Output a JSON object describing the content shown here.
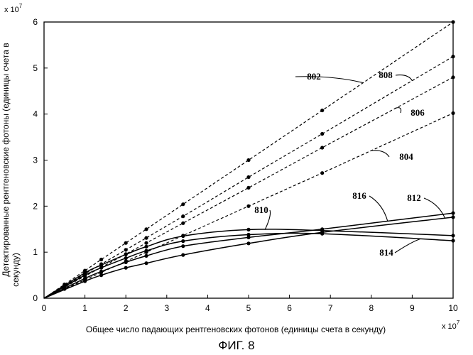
{
  "chart_data": {
    "type": "line",
    "caption": "ФИГ. 8",
    "xlabel": "Общее число падающих рентгеновских фотонов (единицы счета в секунду)",
    "ylabel_line1": "Детектированные рентгеновские фотоны (единицы счета в",
    "ylabel_line2": "секунду)",
    "x_multiplier": {
      "base": "x 10",
      "exp": "7"
    },
    "y_multiplier": {
      "base": "x 10",
      "exp": "7"
    },
    "xlim": [
      0,
      10
    ],
    "ylim": [
      0,
      6
    ],
    "x_ticks": [
      "0",
      "1",
      "2",
      "3",
      "4",
      "5",
      "6",
      "7",
      "8",
      "9",
      "10"
    ],
    "y_ticks": [
      "0",
      "1",
      "2",
      "3",
      "4",
      "5",
      "6"
    ],
    "series": [
      {
        "name": "802",
        "style": "dashed",
        "x": [
          0,
          0.5,
          1,
          1.4,
          2,
          2.5,
          3.4,
          5,
          6.8,
          10
        ],
        "y": [
          0,
          0.3,
          0.6,
          0.84,
          1.2,
          1.5,
          2.04,
          3.0,
          4.08,
          6.0
        ]
      },
      {
        "name": "808",
        "style": "dashed",
        "x": [
          0,
          0.5,
          1,
          1.4,
          2,
          2.5,
          3.4,
          5,
          6.8,
          10
        ],
        "y": [
          0,
          0.26,
          0.53,
          0.74,
          1.05,
          1.31,
          1.78,
          2.63,
          3.57,
          5.25
        ]
      },
      {
        "name": "806",
        "style": "dashed",
        "x": [
          0,
          0.5,
          1,
          1.4,
          2,
          2.5,
          3.4,
          5,
          6.8,
          10
        ],
        "y": [
          0,
          0.24,
          0.48,
          0.67,
          0.96,
          1.2,
          1.63,
          2.4,
          3.27,
          4.8
        ]
      },
      {
        "name": "804",
        "style": "dashed",
        "x": [
          0,
          0.5,
          1,
          1.4,
          2,
          2.5,
          3.4,
          5,
          6.8,
          10
        ],
        "y": [
          0,
          0.2,
          0.4,
          0.56,
          0.8,
          1.0,
          1.36,
          2.0,
          2.72,
          4.02
        ]
      },
      {
        "name": "810",
        "style": "solid",
        "x": [
          0,
          1,
          1.4,
          2,
          2.5,
          3.4,
          5,
          6.8,
          10
        ],
        "y": [
          0,
          0.55,
          0.72,
          0.95,
          1.12,
          1.35,
          1.49,
          1.47,
          1.36
        ]
      },
      {
        "name": "814",
        "style": "solid",
        "x": [
          0,
          1,
          1.4,
          2,
          2.5,
          3.4,
          5,
          6.8,
          10
        ],
        "y": [
          0,
          0.5,
          0.66,
          0.87,
          1.03,
          1.24,
          1.38,
          1.4,
          1.25
        ]
      },
      {
        "name": "816",
        "style": "solid",
        "x": [
          0,
          1,
          1.4,
          2,
          2.5,
          3.4,
          5,
          6.8,
          10
        ],
        "y": [
          0,
          0.43,
          0.58,
          0.78,
          0.92,
          1.13,
          1.32,
          1.5,
          1.85
        ]
      },
      {
        "name": "812",
        "style": "solid",
        "x": [
          0,
          1,
          1.4,
          2,
          2.5,
          3.4,
          5,
          6.8,
          10
        ],
        "y": [
          0,
          0.37,
          0.5,
          0.66,
          0.76,
          0.94,
          1.19,
          1.43,
          1.76
        ]
      }
    ],
    "annotations": [
      {
        "label": "802",
        "series": "802",
        "at_x": 7.8
      },
      {
        "label": "808",
        "series": "808",
        "at_x": 9.0
      },
      {
        "label": "806",
        "series": "806",
        "at_x": 8.6
      },
      {
        "label": "804",
        "series": "804",
        "at_x": 8.0
      },
      {
        "label": "810",
        "series": "810",
        "at_x": 5.4
      },
      {
        "label": "816",
        "series": "816",
        "at_x": 8.4
      },
      {
        "label": "812",
        "series": "812",
        "at_x": 9.8
      },
      {
        "label": "814",
        "series": "814",
        "at_x": 9.2
      }
    ]
  }
}
